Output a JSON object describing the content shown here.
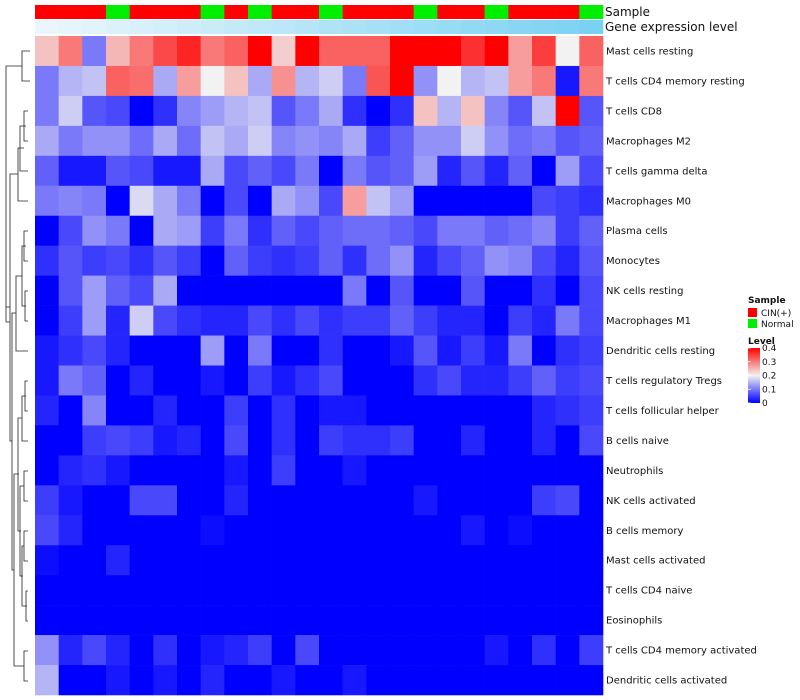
{
  "chart_data": {
    "type": "heatmap",
    "title": "",
    "annotation_rows": [
      "Sample",
      "Gene expression level"
    ],
    "samples": [
      "CIN(+)",
      "CIN(+)",
      "CIN(+)",
      "Normal",
      "CIN(+)",
      "CIN(+)",
      "CIN(+)",
      "Normal",
      "CIN(+)",
      "Normal",
      "CIN(+)",
      "CIN(+)",
      "Normal",
      "CIN(+)",
      "CIN(+)",
      "CIN(+)",
      "Normal",
      "CIN(+)",
      "CIN(+)",
      "Normal",
      "CIN(+)",
      "CIN(+)",
      "CIN(+)",
      "Normal"
    ],
    "gene_expression_level": [
      0.02,
      0.05,
      0.08,
      0.11,
      0.14,
      0.17,
      0.2,
      0.23,
      0.27,
      0.3,
      0.33,
      0.37,
      0.4,
      0.43,
      0.47,
      0.5,
      0.53,
      0.57,
      0.6,
      0.63,
      0.67,
      0.7,
      0.73,
      0.76
    ],
    "rows": [
      "Mast cells resting",
      "T cells CD4 memory resting",
      "T cells CD8",
      "Macrophages M2",
      "T cells gamma delta",
      "Macrophages M0",
      "Plasma cells",
      "Monocytes",
      "NK cells resting",
      "Macrophages M1",
      "Dendritic cells resting",
      "T cells regulatory  Tregs",
      "T cells follicular helper",
      "B cells naive",
      "Neutrophils",
      "NK cells activated",
      "B cells memory",
      "Mast cells activated",
      "T cells CD4 naive",
      "Eosinophils",
      "T cells CD4 memory activated",
      "Dendritic cells activated"
    ],
    "values": [
      [
        0.24,
        0.3,
        0.1,
        0.25,
        0.3,
        0.34,
        0.37,
        0.3,
        0.32,
        0.4,
        0.23,
        0.4,
        0.32,
        0.32,
        0.32,
        0.4,
        0.4,
        0.4,
        0.36,
        0.4,
        0.27,
        0.35,
        0.2,
        0.32
      ],
      [
        0.1,
        0.15,
        0.16,
        0.32,
        0.31,
        0.14,
        0.27,
        0.2,
        0.24,
        0.14,
        0.28,
        0.15,
        0.17,
        0.1,
        0.33,
        0.4,
        0.12,
        0.2,
        0.15,
        0.16,
        0.27,
        0.3,
        0.02,
        0.3
      ],
      [
        0.1,
        0.17,
        0.07,
        0.06,
        0.0,
        0.04,
        0.11,
        0.13,
        0.15,
        0.16,
        0.07,
        0.1,
        0.14,
        0.04,
        0.0,
        0.04,
        0.24,
        0.15,
        0.24,
        0.11,
        0.07,
        0.16,
        0.4,
        0.07
      ],
      [
        0.14,
        0.1,
        0.12,
        0.12,
        0.09,
        0.14,
        0.09,
        0.16,
        0.14,
        0.17,
        0.11,
        0.12,
        0.11,
        0.14,
        0.05,
        0.08,
        0.12,
        0.12,
        0.17,
        0.12,
        0.09,
        0.1,
        0.07,
        0.08
      ],
      [
        0.08,
        0.02,
        0.02,
        0.07,
        0.06,
        0.02,
        0.02,
        0.14,
        0.06,
        0.08,
        0.06,
        0.1,
        0.0,
        0.1,
        0.07,
        0.08,
        0.13,
        0.03,
        0.07,
        0.03,
        0.08,
        0.0,
        0.13,
        0.06
      ],
      [
        0.1,
        0.11,
        0.1,
        0.0,
        0.18,
        0.14,
        0.1,
        0.0,
        0.06,
        0.0,
        0.14,
        0.12,
        0.06,
        0.27,
        0.16,
        0.13,
        0.0,
        0.0,
        0.0,
        0.0,
        0.0,
        0.06,
        0.05,
        0.04
      ],
      [
        0.0,
        0.06,
        0.12,
        0.1,
        0.0,
        0.14,
        0.13,
        0.05,
        0.1,
        0.04,
        0.08,
        0.06,
        0.08,
        0.09,
        0.09,
        0.08,
        0.06,
        0.1,
        0.1,
        0.08,
        0.09,
        0.11,
        0.05,
        0.08
      ],
      [
        0.04,
        0.07,
        0.05,
        0.06,
        0.04,
        0.07,
        0.05,
        0.0,
        0.08,
        0.05,
        0.04,
        0.05,
        0.08,
        0.04,
        0.09,
        0.12,
        0.03,
        0.06,
        0.08,
        0.12,
        0.11,
        0.06,
        0.03,
        0.07
      ],
      [
        0.0,
        0.07,
        0.13,
        0.08,
        0.06,
        0.14,
        0.0,
        0.0,
        0.0,
        0.0,
        0.0,
        0.0,
        0.0,
        0.1,
        0.0,
        0.07,
        0.0,
        0.0,
        0.07,
        0.0,
        0.0,
        0.04,
        0.0,
        0.06
      ],
      [
        0.0,
        0.05,
        0.13,
        0.03,
        0.17,
        0.06,
        0.04,
        0.03,
        0.03,
        0.06,
        0.04,
        0.06,
        0.04,
        0.05,
        0.05,
        0.08,
        0.05,
        0.03,
        0.03,
        0.0,
        0.05,
        0.03,
        0.1,
        0.06
      ],
      [
        0.02,
        0.04,
        0.06,
        0.03,
        0.0,
        0.0,
        0.0,
        0.13,
        0.0,
        0.1,
        0.0,
        0.0,
        0.04,
        0.0,
        0.0,
        0.02,
        0.07,
        0.02,
        0.05,
        0.02,
        0.1,
        0.0,
        0.04,
        0.05
      ],
      [
        0.02,
        0.1,
        0.08,
        0.0,
        0.03,
        0.0,
        0.0,
        0.02,
        0.0,
        0.05,
        0.02,
        0.04,
        0.06,
        0.0,
        0.0,
        0.0,
        0.04,
        0.06,
        0.03,
        0.03,
        0.05,
        0.08,
        0.05,
        0.06
      ],
      [
        0.03,
        0.0,
        0.11,
        0.0,
        0.0,
        0.03,
        0.0,
        0.0,
        0.05,
        0.0,
        0.04,
        0.0,
        0.02,
        0.02,
        0.0,
        0.0,
        0.0,
        0.0,
        0.0,
        0.0,
        0.0,
        0.03,
        0.04,
        0.05
      ],
      [
        0.0,
        0.0,
        0.05,
        0.06,
        0.05,
        0.02,
        0.03,
        0.0,
        0.06,
        0.0,
        0.04,
        0.0,
        0.05,
        0.04,
        0.04,
        0.05,
        0.0,
        0.0,
        0.03,
        0.0,
        0.0,
        0.03,
        0.0,
        0.06
      ],
      [
        0.0,
        0.03,
        0.04,
        0.02,
        0.0,
        0.0,
        0.0,
        0.0,
        0.02,
        0.0,
        0.05,
        0.0,
        0.0,
        0.02,
        0.0,
        0.0,
        0.0,
        0.0,
        0.0,
        0.0,
        0.0,
        0.0,
        0.0,
        0.0
      ],
      [
        0.05,
        0.02,
        0.0,
        0.0,
        0.06,
        0.06,
        0.0,
        0.0,
        0.03,
        0.0,
        0.0,
        0.0,
        0.0,
        0.0,
        0.0,
        0.0,
        0.02,
        0.0,
        0.0,
        0.0,
        0.0,
        0.05,
        0.06,
        0.0
      ],
      [
        0.06,
        0.03,
        0.0,
        0.0,
        0.0,
        0.0,
        0.0,
        0.01,
        0.0,
        0.0,
        0.0,
        0.0,
        0.0,
        0.0,
        0.0,
        0.0,
        0.0,
        0.0,
        0.02,
        0.0,
        0.01,
        0.0,
        0.0,
        0.0
      ],
      [
        0.01,
        0.0,
        0.0,
        0.03,
        0.0,
        0.0,
        0.0,
        0.0,
        0.0,
        0.0,
        0.0,
        0.0,
        0.0,
        0.0,
        0.0,
        0.0,
        0.0,
        0.0,
        0.0,
        0.0,
        0.0,
        0.0,
        0.0,
        0.0
      ],
      [
        0.0,
        0.0,
        0.0,
        0.0,
        0.0,
        0.0,
        0.0,
        0.0,
        0.0,
        0.0,
        0.0,
        0.0,
        0.0,
        0.0,
        0.0,
        0.0,
        0.0,
        0.0,
        0.0,
        0.0,
        0.0,
        0.0,
        0.0,
        0.0
      ],
      [
        0.0,
        0.0,
        0.0,
        0.0,
        0.0,
        0.0,
        0.0,
        0.0,
        0.0,
        0.0,
        0.0,
        0.0,
        0.0,
        0.0,
        0.0,
        0.0,
        0.0,
        0.0,
        0.0,
        0.0,
        0.0,
        0.0,
        0.0,
        0.0
      ],
      [
        0.12,
        0.03,
        0.06,
        0.03,
        0.0,
        0.04,
        0.0,
        0.02,
        0.03,
        0.05,
        0.0,
        0.06,
        0.0,
        0.0,
        0.0,
        0.0,
        0.0,
        0.0,
        0.0,
        0.02,
        0.0,
        0.04,
        0.0,
        0.05
      ],
      [
        0.15,
        0.0,
        0.0,
        0.02,
        0.0,
        0.02,
        0.0,
        0.03,
        0.0,
        0.0,
        0.02,
        0.0,
        0.0,
        0.02,
        0.0,
        0.0,
        0.0,
        0.0,
        0.0,
        0.0,
        0.0,
        0.0,
        0.0,
        0.0
      ]
    ],
    "color_scale": {
      "min": 0,
      "max": 0.4,
      "stops": [
        {
          "value": 0,
          "color": "#0000ff"
        },
        {
          "value": 0.2,
          "color": "#f2f2f2"
        },
        {
          "value": 0.4,
          "color": "#ff0000"
        }
      ]
    },
    "legend": {
      "sample_title": "Sample",
      "sample_items": [
        {
          "label": "CIN(+)",
          "color": "#ff0000"
        },
        {
          "label": "Normal",
          "color": "#00ee00"
        }
      ],
      "level_title": "Level",
      "level_ticks": [
        "0",
        "0.1",
        "0.2",
        "0.3",
        "0.4"
      ],
      "placement": "right"
    },
    "gene_expression_colors": {
      "low": "#edf7fc",
      "high": "#56c6ef"
    },
    "dendrogram": "hierarchical row clustering, left side"
  }
}
